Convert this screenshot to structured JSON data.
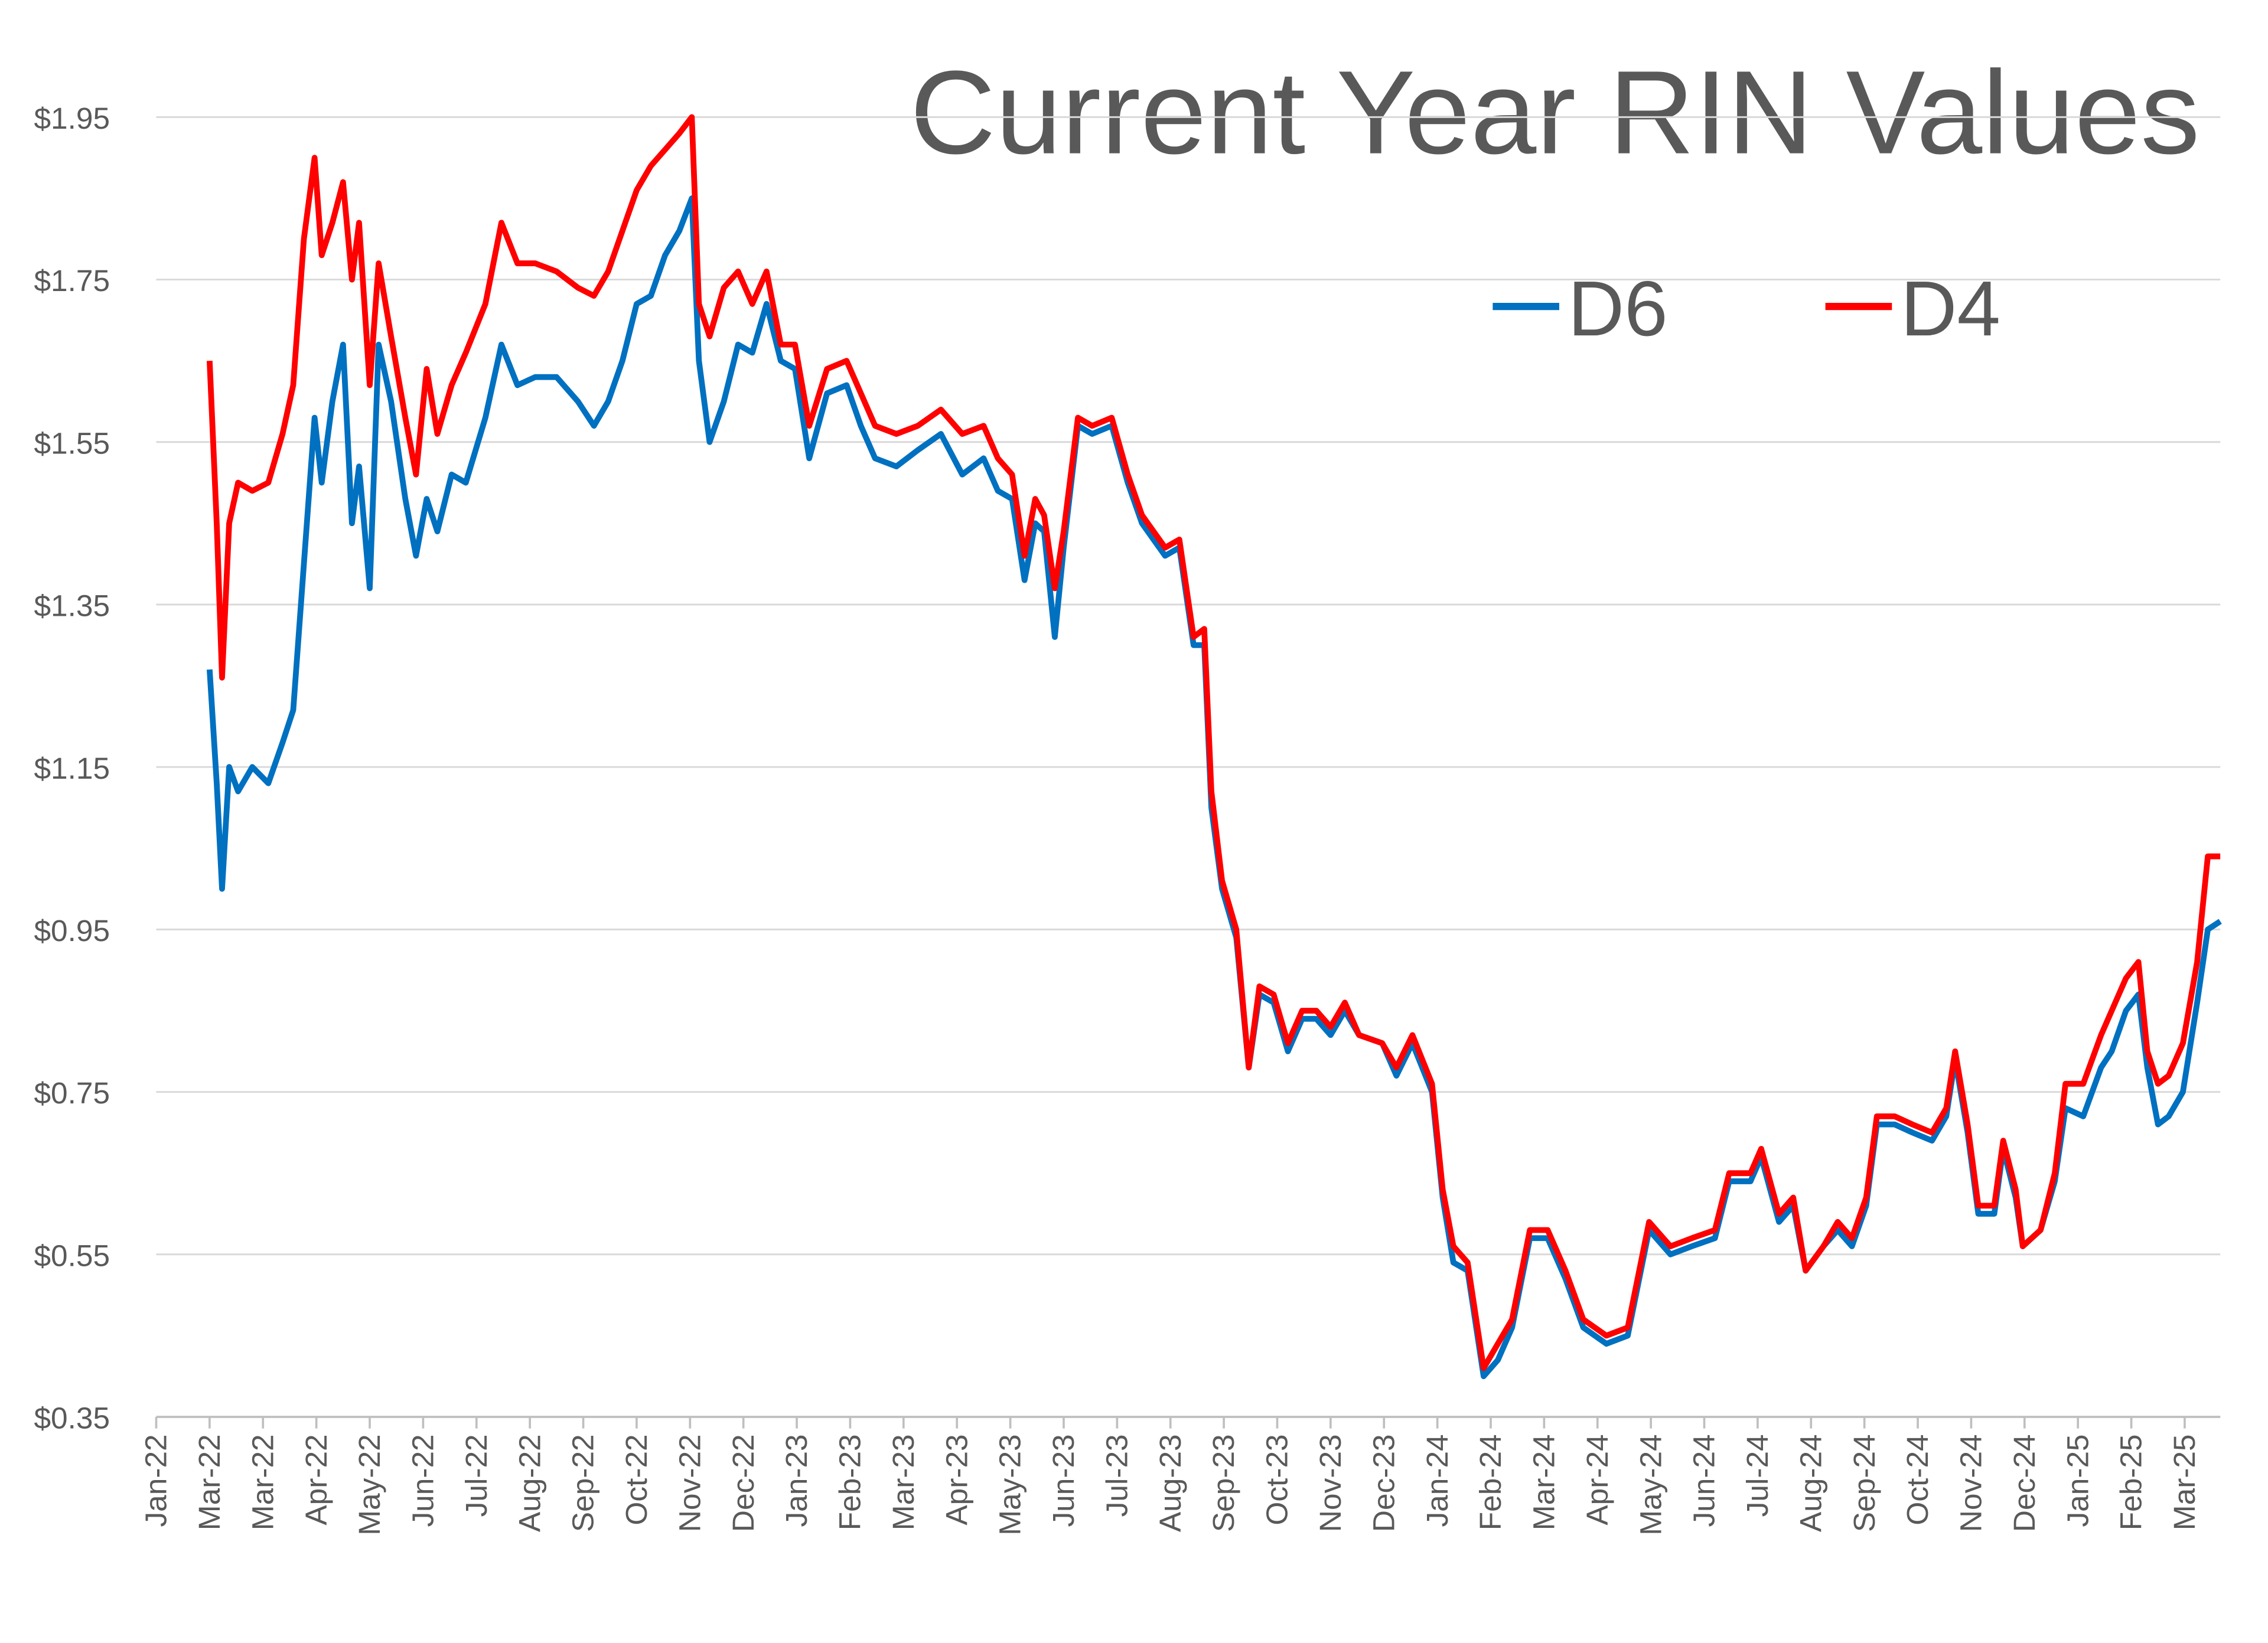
{
  "chart_data": {
    "type": "line",
    "title": "Current Year RIN Values",
    "xlim": [
      0,
      1160
    ],
    "xticks": [
      {
        "value": 0,
        "label": "Jan-22"
      },
      {
        "value": 30,
        "label": "Mar-22"
      },
      {
        "value": 60,
        "label": "Mar-22"
      },
      {
        "value": 90,
        "label": "Apr-22"
      },
      {
        "value": 120,
        "label": "May-22"
      },
      {
        "value": 150,
        "label": "Jun-22"
      },
      {
        "value": 180,
        "label": "Jul-22"
      },
      {
        "value": 210,
        "label": "Aug-22"
      },
      {
        "value": 240,
        "label": "Sep-22"
      },
      {
        "value": 270,
        "label": "Oct-22"
      },
      {
        "value": 300,
        "label": "Nov-22"
      },
      {
        "value": 330,
        "label": "Dec-22"
      },
      {
        "value": 360,
        "label": "Jan-23"
      },
      {
        "value": 390,
        "label": "Feb-23"
      },
      {
        "value": 420,
        "label": "Mar-23"
      },
      {
        "value": 450,
        "label": "Apr-23"
      },
      {
        "value": 480,
        "label": "May-23"
      },
      {
        "value": 510,
        "label": "Jun-23"
      },
      {
        "value": 540,
        "label": "Jul-23"
      },
      {
        "value": 570,
        "label": "Aug-23"
      },
      {
        "value": 600,
        "label": "Sep-23"
      },
      {
        "value": 630,
        "label": "Oct-23"
      },
      {
        "value": 660,
        "label": "Nov-23"
      },
      {
        "value": 690,
        "label": "Dec-23"
      },
      {
        "value": 720,
        "label": "Jan-24"
      },
      {
        "value": 750,
        "label": "Feb-24"
      },
      {
        "value": 780,
        "label": "Mar-24"
      },
      {
        "value": 810,
        "label": "Apr-24"
      },
      {
        "value": 840,
        "label": "May-24"
      },
      {
        "value": 870,
        "label": "Jun-24"
      },
      {
        "value": 900,
        "label": "Jul-24"
      },
      {
        "value": 930,
        "label": "Aug-24"
      },
      {
        "value": 960,
        "label": "Sep-24"
      },
      {
        "value": 990,
        "label": "Oct-24"
      },
      {
        "value": 1020,
        "label": "Nov-24"
      },
      {
        "value": 1050,
        "label": "Dec-24"
      },
      {
        "value": 1080,
        "label": "Jan-25"
      },
      {
        "value": 1110,
        "label": "Feb-25"
      },
      {
        "value": 1140,
        "label": "Mar-25"
      }
    ],
    "ylim": [
      0.35,
      1.95
    ],
    "yticks": [
      {
        "value": 0.35,
        "label": "$0.35"
      },
      {
        "value": 0.55,
        "label": "$0.55"
      },
      {
        "value": 0.75,
        "label": "$0.75"
      },
      {
        "value": 0.95,
        "label": "$0.95"
      },
      {
        "value": 1.15,
        "label": "$1.15"
      },
      {
        "value": 1.35,
        "label": "$1.35"
      },
      {
        "value": 1.55,
        "label": "$1.55"
      },
      {
        "value": 1.75,
        "label": "$1.75"
      },
      {
        "value": 1.95,
        "label": "$1.95"
      }
    ],
    "grid": true,
    "x": [
      30,
      34,
      37,
      41,
      46,
      54,
      63,
      71,
      77,
      83,
      89,
      93,
      99,
      105,
      110,
      114,
      120,
      125,
      132,
      140,
      146,
      152,
      158,
      166,
      174,
      185,
      194,
      203,
      213,
      225,
      237,
      246,
      254,
      262,
      270,
      278,
      286,
      294,
      301,
      305,
      311,
      319,
      327,
      335,
      343,
      351,
      359,
      367,
      377,
      388,
      396,
      404,
      416,
      428,
      441,
      453,
      465,
      473,
      481,
      488,
      494,
      499,
      505,
      510,
      518,
      526,
      537,
      546,
      554,
      567,
      575,
      583,
      589,
      593,
      599,
      607,
      614,
      620,
      628,
      636,
      644,
      652,
      660,
      668,
      676,
      689,
      697,
      706,
      717,
      723,
      729,
      737,
      746,
      754,
      762,
      772,
      782,
      792,
      802,
      815,
      827,
      839,
      851,
      863,
      876,
      884,
      896,
      902,
      912,
      920,
      927,
      937,
      945,
      953,
      961,
      967,
      977,
      987,
      998,
      1006,
      1011,
      1018,
      1024,
      1033,
      1038,
      1045,
      1049,
      1059,
      1067,
      1073,
      1083,
      1093,
      1099,
      1107,
      1114,
      1119,
      1125,
      1131,
      1139,
      1147,
      1153,
      1160
    ],
    "series": [
      {
        "name": "D6",
        "color": "#0070c0",
        "values": [
          1.27,
          1.13,
          1.0,
          1.15,
          1.12,
          1.15,
          1.13,
          1.18,
          1.22,
          1.4,
          1.58,
          1.5,
          1.6,
          1.67,
          1.45,
          1.52,
          1.37,
          1.67,
          1.6,
          1.48,
          1.41,
          1.48,
          1.44,
          1.51,
          1.5,
          1.58,
          1.67,
          1.62,
          1.63,
          1.63,
          1.6,
          1.57,
          1.6,
          1.65,
          1.72,
          1.73,
          1.78,
          1.81,
          1.85,
          1.65,
          1.55,
          1.6,
          1.67,
          1.66,
          1.72,
          1.65,
          1.64,
          1.53,
          1.61,
          1.62,
          1.57,
          1.53,
          1.52,
          1.54,
          1.56,
          1.51,
          1.53,
          1.49,
          1.48,
          1.38,
          1.45,
          1.44,
          1.31,
          1.42,
          1.57,
          1.56,
          1.57,
          1.5,
          1.45,
          1.41,
          1.42,
          1.3,
          1.3,
          1.1,
          1.0,
          0.94,
          0.78,
          0.87,
          0.86,
          0.8,
          0.84,
          0.84,
          0.82,
          0.85,
          0.82,
          0.81,
          0.77,
          0.81,
          0.75,
          0.62,
          0.54,
          0.53,
          0.4,
          0.42,
          0.46,
          0.57,
          0.57,
          0.52,
          0.46,
          0.44,
          0.45,
          0.58,
          0.55,
          0.56,
          0.57,
          0.64,
          0.64,
          0.67,
          0.59,
          0.61,
          0.53,
          0.56,
          0.58,
          0.56,
          0.61,
          0.71,
          0.71,
          0.7,
          0.69,
          0.72,
          0.79,
          0.7,
          0.6,
          0.6,
          0.68,
          0.62,
          0.56,
          0.58,
          0.64,
          0.73,
          0.72,
          0.78,
          0.8,
          0.85,
          0.87,
          0.78,
          0.71,
          0.72,
          0.75,
          0.86,
          0.95,
          0.96
        ]
      },
      {
        "name": "D4",
        "color": "#ff0000",
        "values": [
          1.65,
          1.45,
          1.26,
          1.45,
          1.5,
          1.49,
          1.5,
          1.56,
          1.62,
          1.8,
          1.9,
          1.78,
          1.82,
          1.87,
          1.75,
          1.82,
          1.62,
          1.77,
          1.68,
          1.58,
          1.51,
          1.64,
          1.56,
          1.62,
          1.66,
          1.72,
          1.82,
          1.77,
          1.77,
          1.76,
          1.74,
          1.73,
          1.76,
          1.81,
          1.86,
          1.89,
          1.91,
          1.93,
          1.95,
          1.72,
          1.68,
          1.74,
          1.76,
          1.72,
          1.76,
          1.67,
          1.67,
          1.57,
          1.64,
          1.65,
          1.61,
          1.57,
          1.56,
          1.57,
          1.59,
          1.56,
          1.57,
          1.53,
          1.51,
          1.41,
          1.48,
          1.46,
          1.37,
          1.44,
          1.58,
          1.57,
          1.58,
          1.51,
          1.46,
          1.42,
          1.43,
          1.31,
          1.32,
          1.12,
          1.01,
          0.95,
          0.78,
          0.88,
          0.87,
          0.81,
          0.85,
          0.85,
          0.83,
          0.86,
          0.82,
          0.81,
          0.78,
          0.82,
          0.76,
          0.63,
          0.56,
          0.54,
          0.41,
          0.44,
          0.47,
          0.58,
          0.58,
          0.53,
          0.47,
          0.45,
          0.46,
          0.59,
          0.56,
          0.57,
          0.58,
          0.65,
          0.65,
          0.68,
          0.6,
          0.62,
          0.53,
          0.56,
          0.59,
          0.57,
          0.62,
          0.72,
          0.72,
          0.71,
          0.7,
          0.73,
          0.8,
          0.71,
          0.61,
          0.61,
          0.69,
          0.63,
          0.56,
          0.58,
          0.65,
          0.76,
          0.76,
          0.82,
          0.85,
          0.89,
          0.91,
          0.8,
          0.76,
          0.77,
          0.81,
          0.91,
          1.04,
          1.04
        ]
      }
    ]
  }
}
